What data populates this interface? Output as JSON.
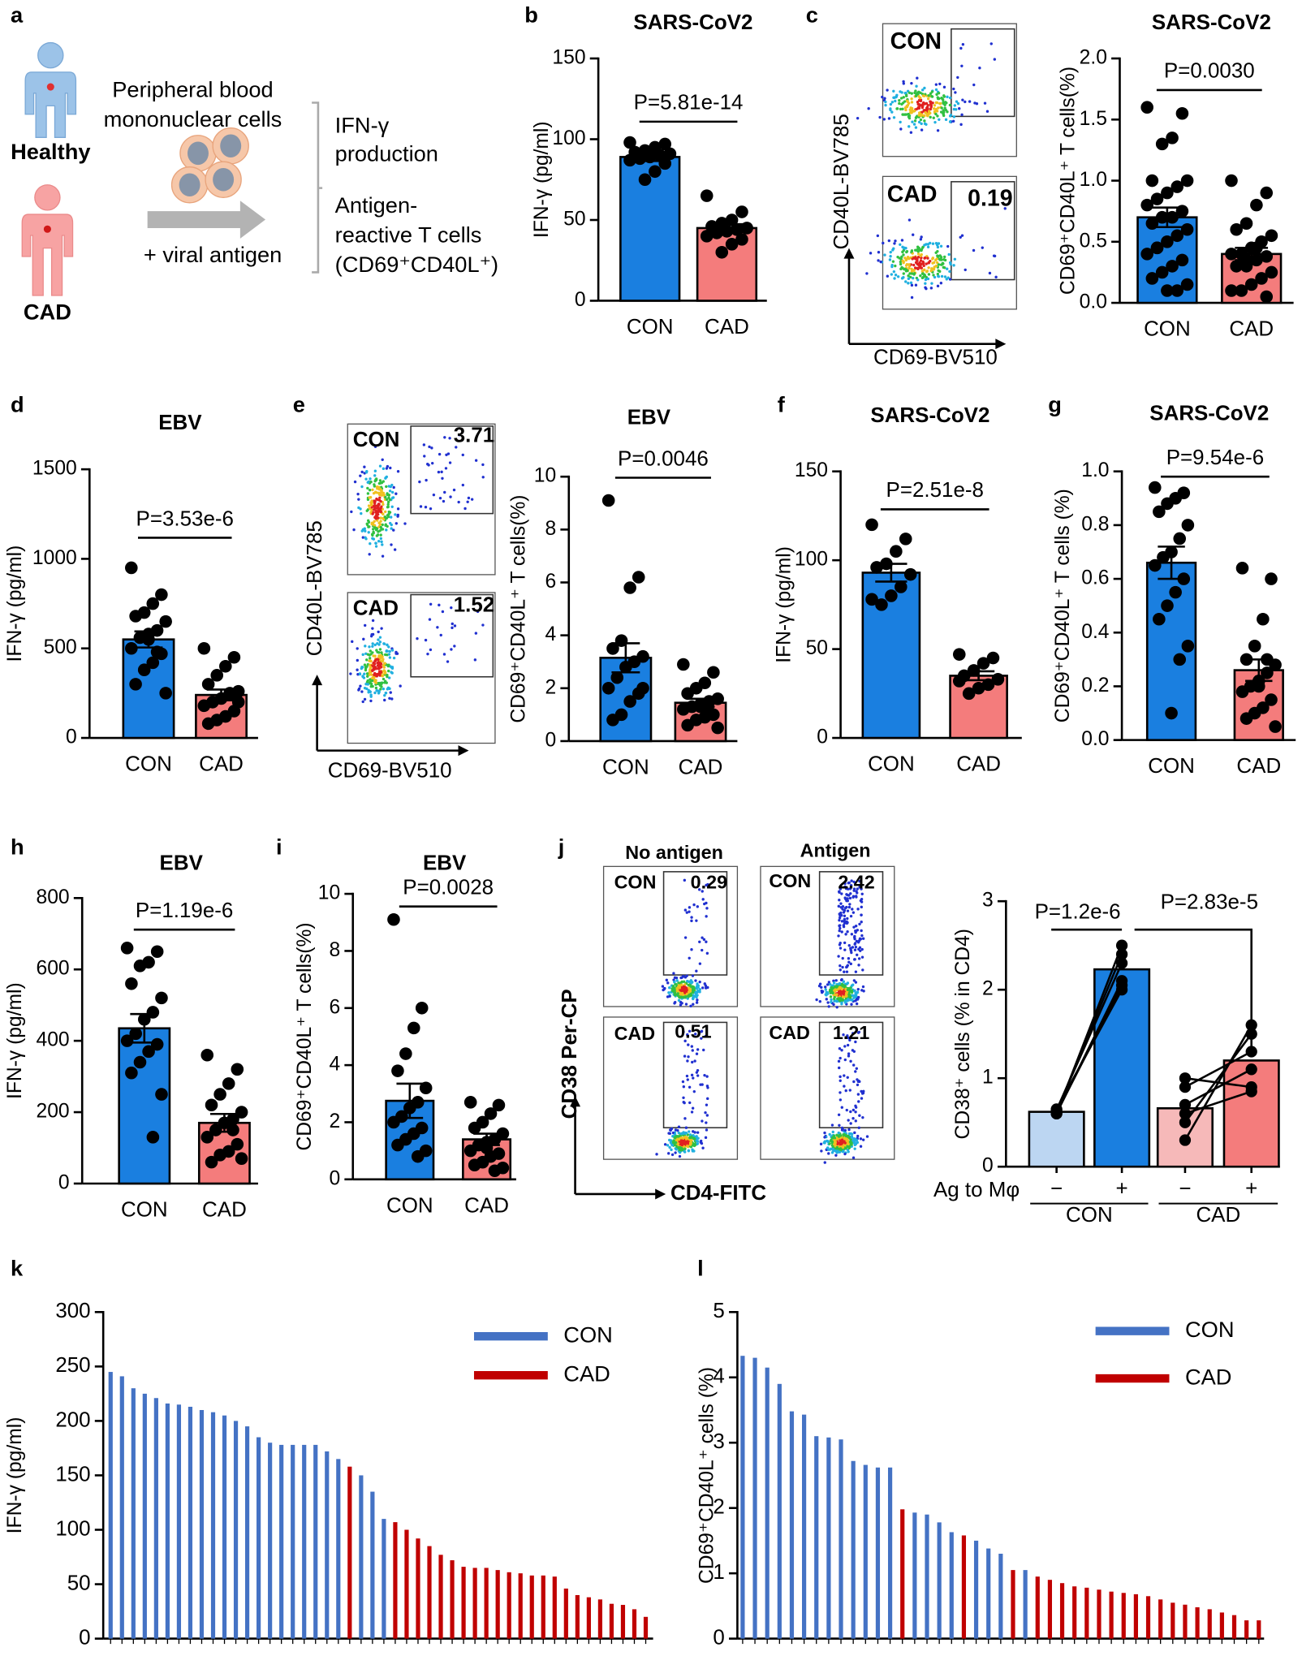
{
  "panel_labels": [
    "a",
    "b",
    "c",
    "d",
    "e",
    "f",
    "g",
    "h",
    "i",
    "j",
    "k",
    "l"
  ],
  "diagram": {
    "groups": [
      "Healthy",
      "CAD"
    ],
    "pbmc": [
      "Peripheral blood",
      "mononuclear cells"
    ],
    "treatment": "+ viral antigen",
    "readouts": [
      [
        "IFN-γ",
        "production"
      ],
      [
        "Antigen-",
        "reactive T cells",
        "(CD69⁺CD40L⁺)"
      ]
    ]
  },
  "flow_plots": [
    {
      "y_label": "CD40L-BV785",
      "x_label": "CD69-BV510",
      "plots": [
        {
          "label": "CON"
        },
        {
          "label": "CAD",
          "gate": 0.19
        }
      ]
    },
    {
      "y_label": "CD40L-BV785",
      "x_label": "CD69-BV510",
      "plots": [
        {
          "label": "CON",
          "gate": 3.71
        },
        {
          "label": "CAD",
          "gate": 1.52
        }
      ]
    },
    {
      "y_label": "CD38 Per-CP",
      "x_label": "CD4-FITC",
      "columns": [
        "No antigen",
        "Antigen"
      ],
      "plots": [
        {
          "label": "CON",
          "gate": 0.29
        },
        {
          "label": "CON",
          "gate": 2.42
        },
        {
          "label": "CAD",
          "gate": 0.51
        },
        {
          "label": "CAD",
          "gate": 1.21
        }
      ]
    }
  ],
  "chart_data": [
    {
      "type": "bar_dot",
      "title": "SARS-CoV2",
      "ylabel": "IFN-γ (pg/ml)",
      "categories": [
        "CON",
        "CAD"
      ],
      "values": [
        89,
        45
      ],
      "errors": [
        2.5,
        2.4
      ],
      "colors": [
        "#1a7fe0",
        "#f47c7c"
      ],
      "points": [
        [
          98,
          97,
          95,
          93,
          92,
          91,
          90,
          89,
          88,
          87,
          85,
          80,
          75
        ],
        [
          65,
          55,
          50,
          48,
          46,
          45,
          44,
          43,
          42,
          40,
          38,
          35,
          30
        ]
      ],
      "p_value": "P=5.81e-14",
      "ylim": [
        0,
        150
      ],
      "yticks": [
        0,
        50,
        100,
        150
      ]
    },
    {
      "type": "bar_dot",
      "title": "SARS-CoV2",
      "ylabel": "CD69⁺CD40L⁺ T cells(%)",
      "categories": [
        "CON",
        "CAD"
      ],
      "values": [
        0.7,
        0.4
      ],
      "errors": [
        0.08,
        0.05
      ],
      "colors": [
        "#1a7fe0",
        "#f47c7c"
      ],
      "points": [
        [
          1.6,
          1.55,
          1.35,
          1.3,
          1.0,
          1.0,
          0.95,
          0.9,
          0.85,
          0.8,
          0.75,
          0.7,
          0.7,
          0.65,
          0.6,
          0.55,
          0.5,
          0.45,
          0.4,
          0.35,
          0.3,
          0.25,
          0.2,
          0.15,
          0.1,
          0.1,
          0.45
        ],
        [
          1.0,
          0.9,
          0.8,
          0.65,
          0.6,
          0.55,
          0.5,
          0.45,
          0.4,
          0.4,
          0.38,
          0.35,
          0.3,
          0.3,
          0.25,
          0.2,
          0.15,
          0.1,
          0.1,
          0.05,
          0.45,
          0.35
        ]
      ],
      "p_value": "P=0.0030",
      "ylim": [
        0,
        2
      ],
      "yticks": [
        {
          "value": 0,
          "label": "0.0"
        },
        {
          "value": 0.5,
          "label": "0.5"
        },
        {
          "value": 1,
          "label": "1.0"
        },
        {
          "value": 1.5,
          "label": "1.5"
        },
        {
          "value": 2,
          "label": "2.0"
        }
      ]
    },
    {
      "type": "bar_dot",
      "title": "EBV",
      "ylabel": "IFN-γ (pg/ml)",
      "categories": [
        "CON",
        "CAD"
      ],
      "values": [
        550,
        240
      ],
      "errors": [
        45,
        30
      ],
      "colors": [
        "#1a7fe0",
        "#f47c7c"
      ],
      "points": [
        [
          950,
          800,
          750,
          700,
          680,
          650,
          600,
          580,
          560,
          500,
          470,
          420,
          380,
          300,
          250,
          480,
          550
        ],
        [
          500,
          450,
          400,
          350,
          300,
          260,
          240,
          220,
          200,
          180,
          150,
          120,
          100,
          80,
          200,
          250
        ]
      ],
      "p_value": "P=3.53e-6",
      "ylim": [
        0,
        1500
      ],
      "yticks": [
        0,
        500,
        1000,
        1500
      ]
    },
    {
      "type": "bar_dot",
      "title": "EBV",
      "ylabel": "CD69⁺CD40L⁺ T cells(%)",
      "categories": [
        "CON",
        "CAD"
      ],
      "values": [
        3.15,
        1.45
      ],
      "errors": [
        0.55,
        0.15
      ],
      "colors": [
        "#1a7fe0",
        "#f47c7c"
      ],
      "points": [
        [
          9.1,
          6.2,
          5.8,
          3.8,
          3.5,
          3.2,
          3.0,
          2.8,
          2.4,
          2.0,
          1.8,
          1.5,
          1.0,
          0.8,
          2.0
        ],
        [
          2.9,
          2.6,
          2.2,
          2.0,
          1.8,
          1.6,
          1.5,
          1.4,
          1.3,
          1.2,
          1.0,
          0.9,
          0.8,
          0.6,
          0.5,
          1.1,
          1.3
        ]
      ],
      "p_value": "P=0.0046",
      "ylim": [
        0,
        10
      ],
      "yticks": [
        0,
        2,
        4,
        6,
        8,
        10
      ]
    },
    {
      "type": "bar_dot",
      "title": "SARS-CoV2",
      "ylabel": "IFN-γ (pg/ml)",
      "categories": [
        "CON",
        "CAD"
      ],
      "values": [
        93,
        35
      ],
      "errors": [
        5,
        2.5
      ],
      "colors": [
        "#1a7fe0",
        "#f47c7c"
      ],
      "points": [
        [
          120,
          112,
          105,
          98,
          96,
          92,
          85,
          80,
          75,
          78
        ],
        [
          47,
          45,
          42,
          38,
          35,
          33,
          30,
          28,
          25,
          32
        ]
      ],
      "p_value": "P=2.51e-8",
      "ylim": [
        0,
        150
      ],
      "yticks": [
        0,
        50,
        100,
        150
      ]
    },
    {
      "type": "bar_dot",
      "title": "SARS-CoV2",
      "ylabel": "CD69⁺CD40L⁺ T cells (%)",
      "categories": [
        "CON",
        "CAD"
      ],
      "values": [
        0.66,
        0.26
      ],
      "errors": [
        0.06,
        0.04
      ],
      "colors": [
        "#1a7fe0",
        "#f47c7c"
      ],
      "points": [
        [
          0.94,
          0.92,
          0.9,
          0.88,
          0.85,
          0.8,
          0.75,
          0.7,
          0.68,
          0.65,
          0.6,
          0.55,
          0.5,
          0.45,
          0.35,
          0.3,
          0.1
        ],
        [
          0.64,
          0.6,
          0.45,
          0.35,
          0.3,
          0.28,
          0.25,
          0.22,
          0.2,
          0.18,
          0.15,
          0.12,
          0.1,
          0.08,
          0.05,
          0.3,
          0.2
        ]
      ],
      "p_value": "P=9.54e-6",
      "ylim": [
        0,
        1
      ],
      "yticks": [
        {
          "value": 0,
          "label": "0.0"
        },
        {
          "value": 0.2,
          "label": "0.2"
        },
        {
          "value": 0.4,
          "label": "0.4"
        },
        {
          "value": 0.6,
          "label": "0.6"
        },
        {
          "value": 0.8,
          "label": "0.8"
        },
        {
          "value": 1,
          "label": "1.0"
        }
      ]
    },
    {
      "type": "bar_dot",
      "title": "EBV",
      "ylabel": "IFN-γ (pg/ml)",
      "categories": [
        "CON",
        "CAD"
      ],
      "values": [
        435,
        170
      ],
      "errors": [
        40,
        25
      ],
      "colors": [
        "#1a7fe0",
        "#f47c7c"
      ],
      "points": [
        [
          660,
          650,
          620,
          610,
          560,
          520,
          480,
          460,
          420,
          400,
          390,
          370,
          340,
          310,
          250,
          130
        ],
        [
          360,
          320,
          280,
          250,
          220,
          200,
          180,
          170,
          150,
          130,
          110,
          90,
          80,
          60,
          70,
          150
        ]
      ],
      "p_value": "P=1.19e-6",
      "ylim": [
        0,
        800
      ],
      "yticks": [
        0,
        200,
        400,
        600,
        800
      ]
    },
    {
      "type": "bar_dot",
      "title": "EBV",
      "ylabel": "CD69⁺CD40L⁺ T cells(%)",
      "categories": [
        "CON",
        "CAD"
      ],
      "values": [
        2.75,
        1.4
      ],
      "errors": [
        0.6,
        0.2
      ],
      "colors": [
        "#1a7fe0",
        "#f47c7c"
      ],
      "points": [
        [
          9.1,
          6.0,
          5.3,
          4.4,
          3.8,
          3.2,
          2.7,
          2.5,
          2.2,
          2.0,
          1.8,
          1.6,
          1.4,
          1.2,
          1.0,
          0.8
        ],
        [
          2.7,
          2.6,
          2.3,
          2.0,
          1.8,
          1.6,
          1.4,
          1.3,
          1.2,
          1.0,
          0.9,
          0.8,
          0.6,
          0.5,
          0.4,
          0.3,
          1.1
        ]
      ],
      "p_value": "P=0.0028",
      "ylim": [
        0,
        10
      ],
      "yticks": [
        0,
        2,
        4,
        6,
        8,
        10
      ]
    },
    {
      "type": "paired_bar",
      "ylabel": "CD38⁺ cells  (% in CD4)",
      "xlabel": "Ag to Mφ",
      "categories": [
        "−",
        "+",
        "−",
        "+"
      ],
      "groups": [
        "CON",
        "CAD"
      ],
      "values": [
        0.62,
        2.23,
        0.66,
        1.2
      ],
      "colors": [
        "#bcd6f2",
        "#1a7fe0",
        "#f6b9b9",
        "#f47c7c"
      ],
      "points": [
        [
          0.6,
          0.62,
          0.64,
          0.6,
          0.65,
          0.61
        ],
        [
          2.5,
          2.4,
          2.3,
          2.1,
          2.0,
          2.05
        ],
        [
          0.3,
          0.5,
          0.9,
          1.0,
          0.7,
          0.6
        ],
        [
          1.6,
          1.5,
          1.3,
          0.9,
          1.1,
          0.85
        ]
      ],
      "annotations": [
        "P=1.2e-6",
        "P=2.83e-5"
      ],
      "ylim": [
        0,
        3
      ],
      "yticks": [
        0,
        1,
        2,
        3
      ]
    },
    {
      "type": "bar",
      "ylabel": "IFN-γ (pg/ml)",
      "categories": [
        null,
        null,
        null,
        null,
        null,
        null,
        null,
        null,
        null,
        null,
        null,
        null,
        null,
        null,
        null,
        null,
        null,
        null,
        null,
        null,
        null,
        null,
        null,
        null,
        null,
        null,
        null,
        null,
        null,
        null,
        null,
        null,
        null,
        null,
        null,
        null,
        null,
        null,
        null,
        null,
        null,
        null,
        null,
        null,
        null,
        null,
        null,
        null
      ],
      "series": [
        {
          "name": "CON",
          "color": "#4472c4",
          "values": [
            245,
            241,
            230,
            225,
            221,
            216,
            215,
            213,
            210,
            208,
            205,
            200,
            195,
            185,
            180,
            178,
            178,
            178,
            178,
            172,
            165,
            null,
            150,
            135,
            110,
            null,
            null,
            null,
            null,
            null,
            null,
            null,
            null,
            null,
            null,
            null,
            null,
            null,
            null,
            null,
            null,
            null,
            null,
            null,
            null,
            null,
            null,
            null
          ]
        },
        {
          "name": "CAD",
          "color": "#c00000",
          "values": [
            null,
            null,
            null,
            null,
            null,
            null,
            null,
            null,
            null,
            null,
            null,
            null,
            null,
            null,
            null,
            null,
            null,
            null,
            null,
            null,
            null,
            158,
            null,
            null,
            null,
            107,
            100,
            92,
            85,
            77,
            72,
            66,
            65,
            65,
            63,
            61,
            60,
            58,
            58,
            57,
            46,
            40,
            38,
            36,
            32,
            31,
            27,
            20
          ]
        }
      ],
      "ylim": [
        0,
        300
      ],
      "yticks": [
        0,
        50,
        100,
        150,
        200,
        250,
        300
      ],
      "legend": "upper right"
    },
    {
      "type": "bar",
      "ylabel": "CD69⁺CD40L⁺ cells (%)",
      "categories": [
        null,
        null,
        null,
        null,
        null,
        null,
        null,
        null,
        null,
        null,
        null,
        null,
        null,
        null,
        null,
        null,
        null,
        null,
        null,
        null,
        null,
        null,
        null,
        null,
        null,
        null,
        null,
        null,
        null,
        null,
        null,
        null,
        null,
        null,
        null,
        null,
        null,
        null,
        null,
        null,
        null,
        null,
        null
      ],
      "series": [
        {
          "name": "CON",
          "color": "#4472c4",
          "values": [
            4.33,
            4.3,
            4.15,
            3.9,
            3.48,
            3.43,
            3.1,
            3.08,
            3.05,
            2.72,
            2.66,
            2.62,
            2.62,
            null,
            1.93,
            1.9,
            1.78,
            1.63,
            null,
            1.5,
            1.38,
            1.3,
            null,
            1.05,
            null,
            null,
            null,
            null,
            null,
            null,
            null,
            null,
            null,
            null,
            null,
            null,
            null,
            null,
            null,
            null,
            null,
            null,
            null
          ]
        },
        {
          "name": "CAD",
          "color": "#c00000",
          "values": [
            null,
            null,
            null,
            null,
            null,
            null,
            null,
            null,
            null,
            null,
            null,
            null,
            null,
            1.98,
            null,
            null,
            null,
            null,
            1.58,
            null,
            null,
            null,
            1.05,
            null,
            0.95,
            0.9,
            0.85,
            0.8,
            0.78,
            0.75,
            0.72,
            0.7,
            0.68,
            0.65,
            0.6,
            0.55,
            0.52,
            0.48,
            0.45,
            0.4,
            0.36,
            0.28,
            0.28
          ]
        }
      ],
      "ylim": [
        0,
        5
      ],
      "yticks": [
        0,
        1,
        2,
        3,
        4,
        5
      ],
      "legend": "upper right"
    }
  ]
}
